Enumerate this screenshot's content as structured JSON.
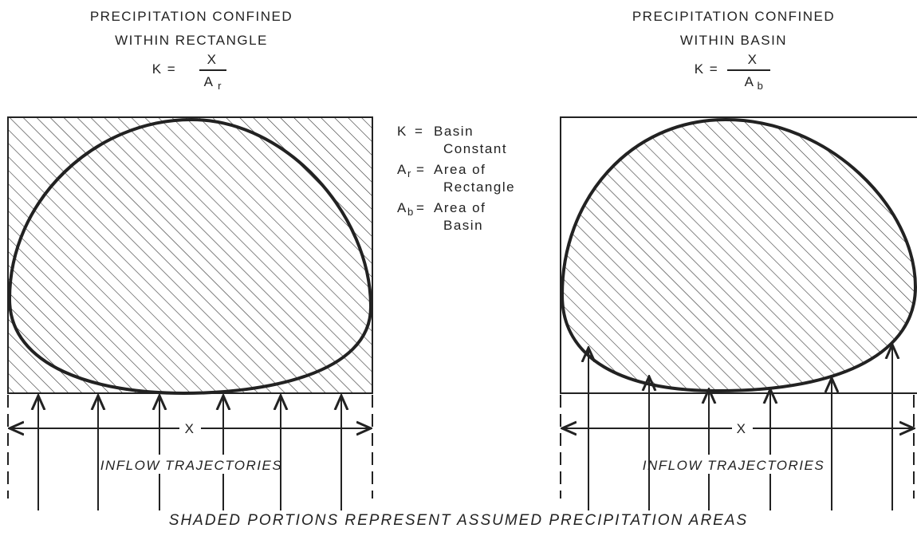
{
  "panels": [
    {
      "title": [
        "PRECIPITATION CONFINED",
        "WITHIN RECTANGLE"
      ],
      "formula": {
        "lhs": "K =",
        "numerator": "X",
        "denominator": "A",
        "subscript": "r"
      },
      "width_label": "X",
      "trajectories_label": "INFLOW TRAJECTORIES"
    },
    {
      "title": [
        "PRECIPITATION CONFINED",
        "WITHIN BASIN"
      ],
      "formula": {
        "lhs": "K =",
        "numerator": "X",
        "denominator": "A",
        "subscript": "b"
      },
      "width_label": "X",
      "trajectories_label": "INFLOW TRAJECTORIES"
    }
  ],
  "legend": [
    {
      "symbol": "K",
      "equals": "=",
      "definition": [
        "Basin",
        "Constant"
      ]
    },
    {
      "symbol": "A",
      "subscript": "r",
      "equals": "=",
      "definition": [
        "Area of",
        "Rectangle"
      ]
    },
    {
      "symbol": "A",
      "subscript": "b",
      "equals": "=",
      "definition": [
        "Area of",
        "Basin"
      ]
    }
  ],
  "caption": "SHADED PORTIONS REPRESENT ASSUMED PRECIPITATION AREAS"
}
